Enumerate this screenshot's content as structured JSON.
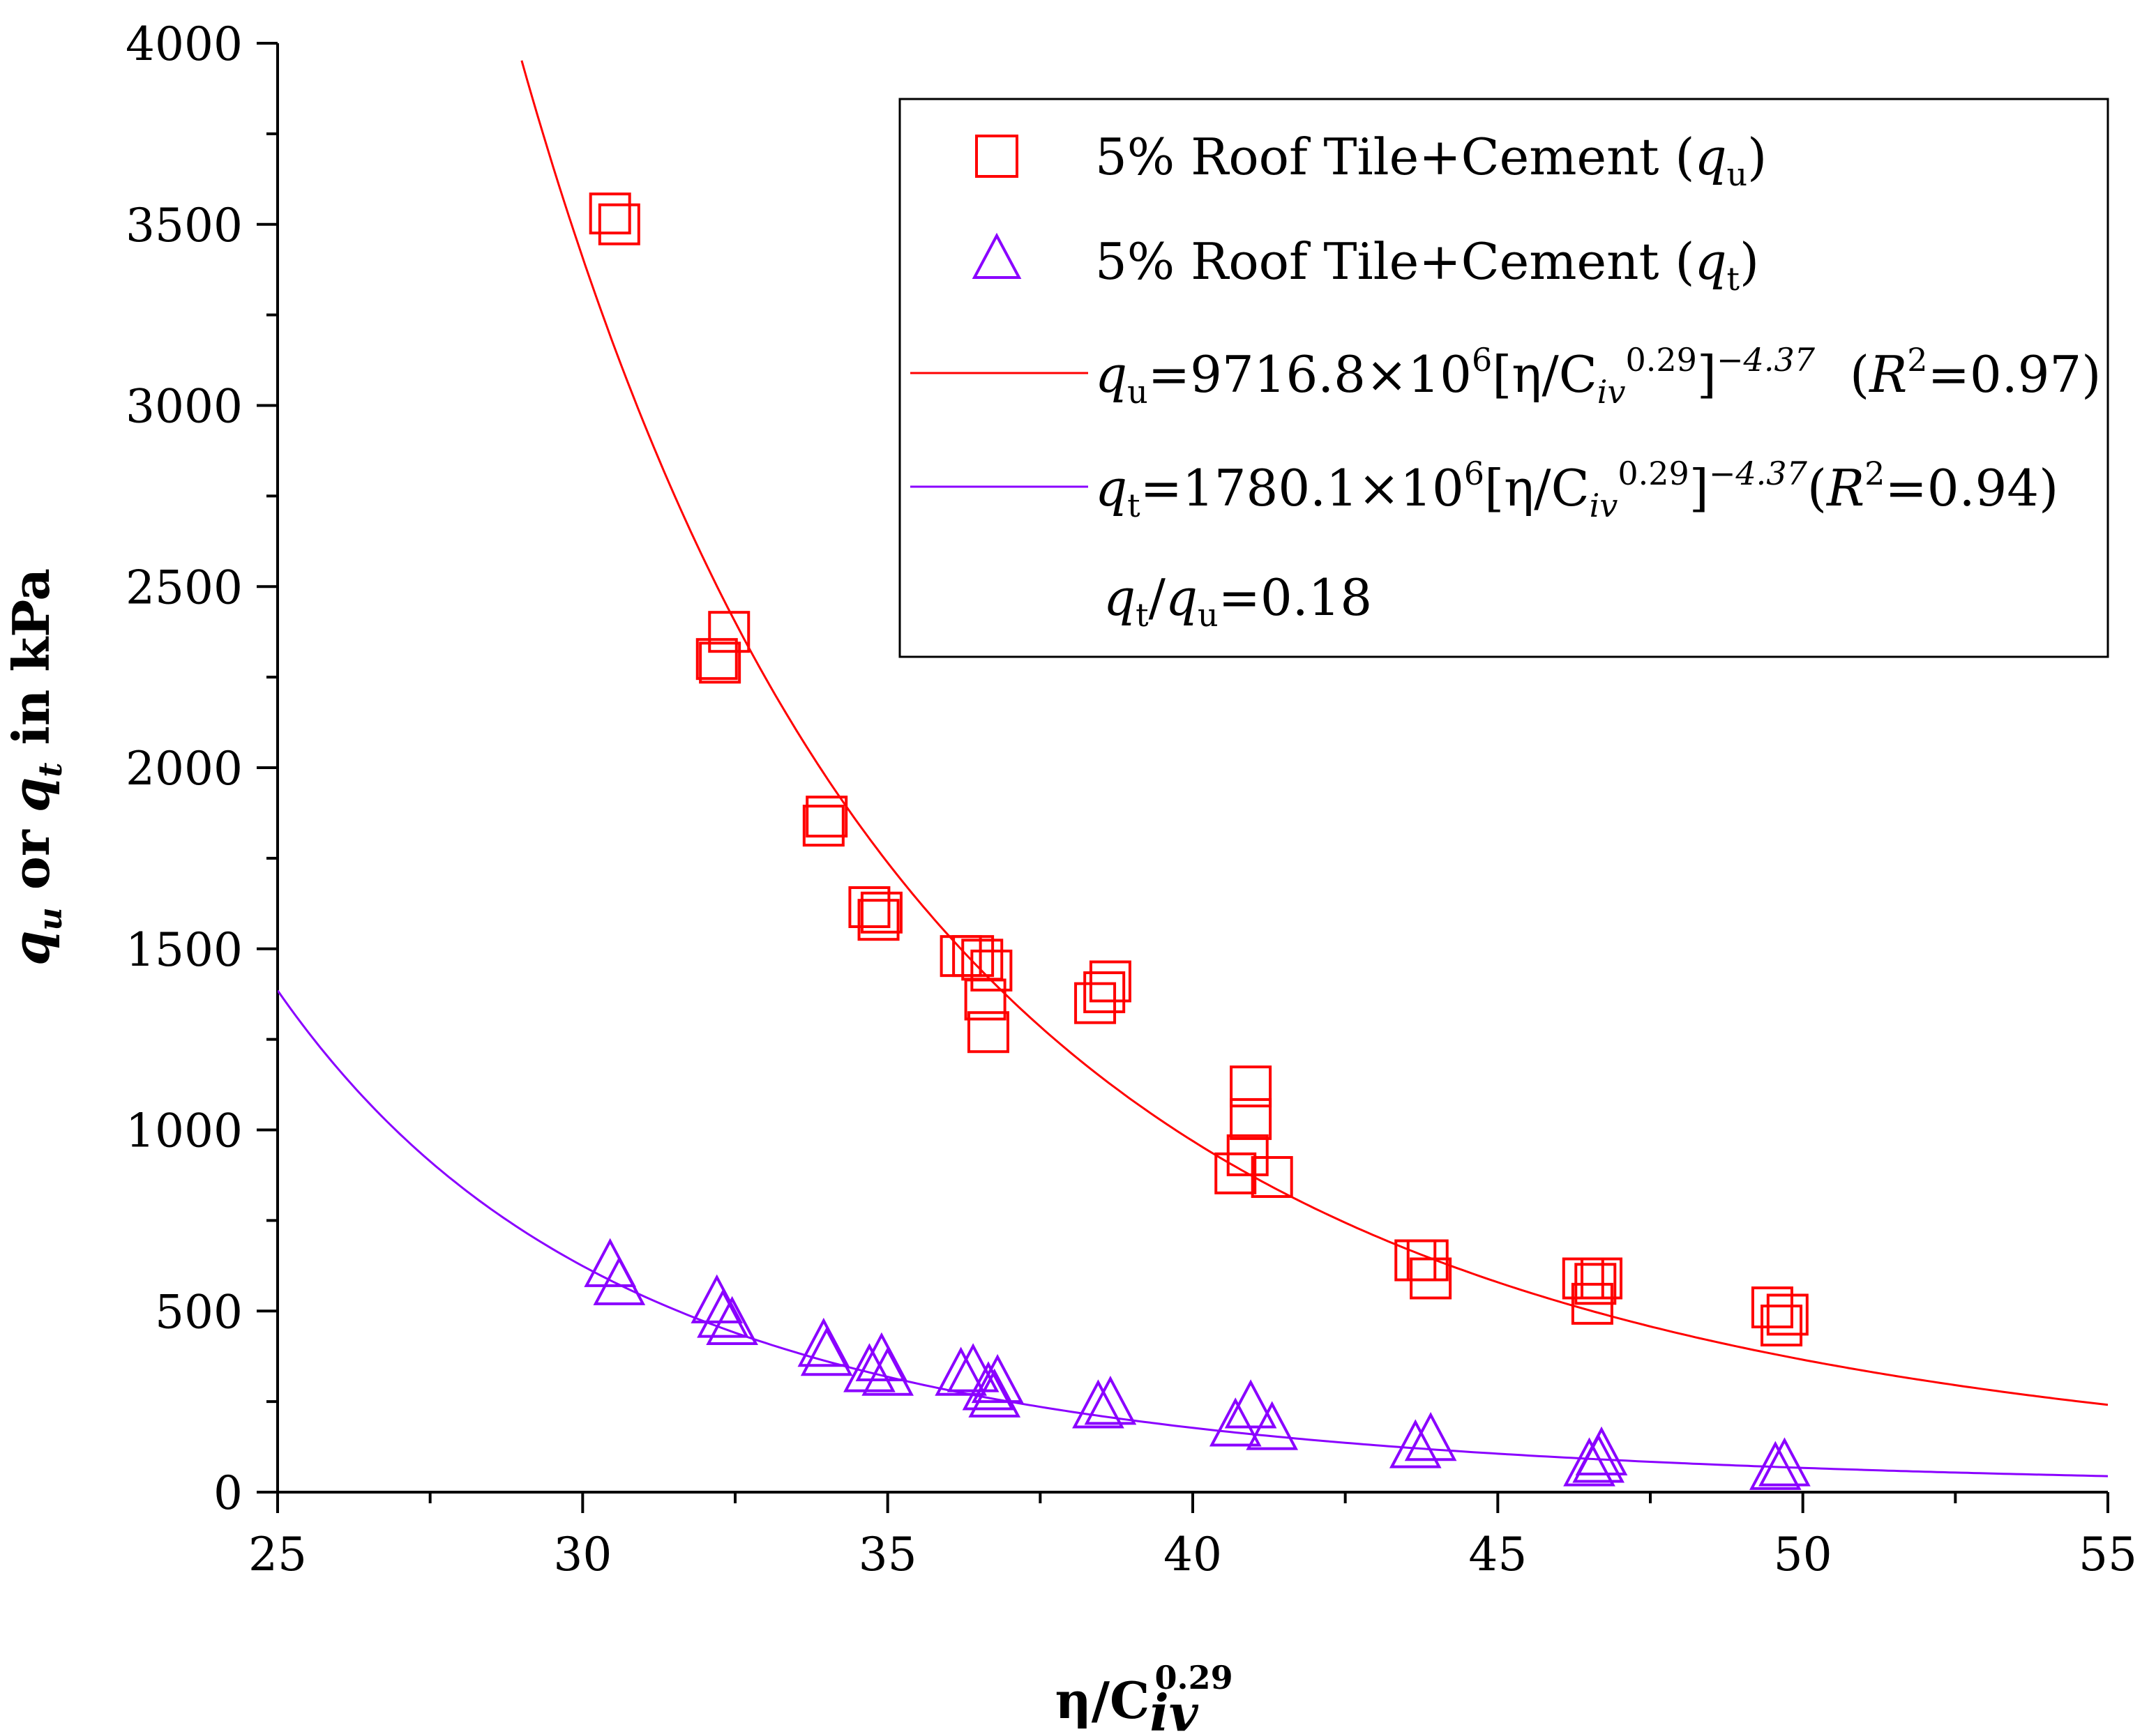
{
  "chart_data": {
    "type": "scatter",
    "title": "",
    "xlabel": {
      "base": "η/C",
      "sub": "iv",
      "sup": "0.29"
    },
    "ylabel": {
      "q1": "q",
      "s1": "u",
      "mid": " or ",
      "q2": "q",
      "s2": "t",
      "tail": " in kPa"
    },
    "xlim": [
      25,
      55
    ],
    "ylim": [
      0,
      4000
    ],
    "x_ticks": [
      25,
      30,
      35,
      40,
      45,
      50,
      55
    ],
    "y_ticks": [
      0,
      500,
      1000,
      1500,
      2000,
      2500,
      3000,
      3500,
      4000
    ],
    "grid": false,
    "legend_position": "top-right",
    "colors": {
      "qu": "#ff0000",
      "qt": "#8a00ff"
    },
    "legend": {
      "series_qu": {
        "prefix": "5% Roof Tile+Cement (",
        "var": "q",
        "sub": "u",
        "suffix": ")"
      },
      "series_qt": {
        "prefix": "5% Roof Tile+Cement (",
        "var": "q",
        "sub": "t",
        "suffix": ")"
      },
      "fit_qu": {
        "var": "q",
        "sub": "u",
        "eq": "=9716.8×10",
        "exp6": "6",
        "bracket": "[η/C",
        "civ": "iv",
        "exp029": "0.29",
        "close": "]",
        "power": "−4.37",
        "r2open": "(",
        "r": "R",
        "r2sup": "2",
        "r2val": "=0.97)"
      },
      "fit_qt": {
        "var": "q",
        "sub": "t",
        "eq": "=1780.1×10",
        "exp6": "6",
        "bracket": "[η/C",
        "civ": "iv",
        "exp029": "0.29",
        "close": "]",
        "power": "−4.37",
        "r2open": "(",
        "r": "R",
        "r2sup": "2",
        "r2val": "=0.94)"
      },
      "ratio": {
        "q1": "q",
        "s1": "t",
        "slash": "/",
        "q2": "q",
        "s2": "u",
        "val": "=0.18"
      }
    },
    "series": [
      {
        "name": "5% Roof Tile+Cement (qu)",
        "marker": "square",
        "points": [
          [
            30.45,
            3530
          ],
          [
            30.6,
            3500
          ],
          [
            32.2,
            2300
          ],
          [
            32.25,
            2290
          ],
          [
            32.4,
            2375
          ],
          [
            33.95,
            1840
          ],
          [
            34.0,
            1865
          ],
          [
            34.7,
            1615
          ],
          [
            34.85,
            1580
          ],
          [
            34.9,
            1600
          ],
          [
            36.2,
            1480
          ],
          [
            36.4,
            1480
          ],
          [
            36.55,
            1470
          ],
          [
            36.7,
            1440
          ],
          [
            36.6,
            1360
          ],
          [
            36.65,
            1270
          ],
          [
            38.4,
            1350
          ],
          [
            38.55,
            1380
          ],
          [
            38.65,
            1410
          ],
          [
            40.7,
            880
          ],
          [
            40.9,
            930
          ],
          [
            40.95,
            1030
          ],
          [
            40.95,
            1120
          ],
          [
            41.3,
            870
          ],
          [
            43.65,
            640
          ],
          [
            43.85,
            640
          ],
          [
            43.9,
            590
          ],
          [
            46.4,
            590
          ],
          [
            46.55,
            520
          ],
          [
            46.6,
            575
          ],
          [
            46.7,
            590
          ],
          [
            49.5,
            510
          ],
          [
            49.65,
            460
          ],
          [
            49.75,
            490
          ]
        ]
      },
      {
        "name": "5% Roof Tile+Cement (qt)",
        "marker": "triangle",
        "points": [
          [
            30.45,
            620
          ],
          [
            30.6,
            570
          ],
          [
            32.2,
            520
          ],
          [
            32.3,
            480
          ],
          [
            32.45,
            460
          ],
          [
            33.95,
            400
          ],
          [
            34.0,
            375
          ],
          [
            34.7,
            330
          ],
          [
            34.9,
            360
          ],
          [
            35.0,
            320
          ],
          [
            36.2,
            320
          ],
          [
            36.4,
            330
          ],
          [
            36.65,
            280
          ],
          [
            36.75,
            260
          ],
          [
            36.8,
            300
          ],
          [
            38.45,
            230
          ],
          [
            38.65,
            240
          ],
          [
            40.7,
            180
          ],
          [
            40.95,
            230
          ],
          [
            41.3,
            170
          ],
          [
            43.65,
            120
          ],
          [
            43.9,
            140
          ],
          [
            46.5,
            70
          ],
          [
            46.65,
            80
          ],
          [
            46.7,
            100
          ],
          [
            49.55,
            60
          ],
          [
            49.7,
            70
          ]
        ]
      },
      {
        "name": "qu fit",
        "type": "line",
        "formula": "qu = 9716.8e6 * x^-4.37",
        "coefficient": 9716800000,
        "exponent": -4.37,
        "x_range": [
          29.0,
          55
        ]
      },
      {
        "name": "qt fit",
        "type": "line",
        "formula": "qt = 1780.1e6 * x^-4.37",
        "coefficient": 1780100000,
        "exponent": -4.37,
        "x_range": [
          25,
          55
        ]
      }
    ]
  }
}
